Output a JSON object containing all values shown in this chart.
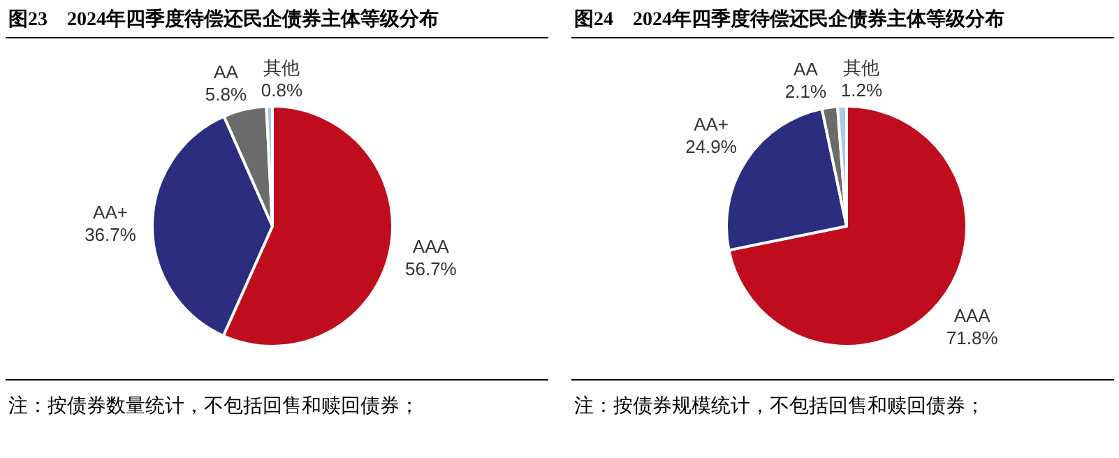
{
  "chart_data": [
    {
      "type": "pie",
      "title": "图23　2024年四季度待偿还民企债券主体等级分布",
      "categories": [
        "AAA",
        "AA+",
        "AA",
        "其他"
      ],
      "values": [
        56.7,
        36.7,
        5.8,
        0.8
      ],
      "value_labels": [
        "56.7%",
        "36.7%",
        "5.8%",
        "0.8%"
      ],
      "colors": [
        "#c00d1e",
        "#2b2d7f",
        "#6b6b6b",
        "#a9c9e9"
      ],
      "annotations": [
        "注：按债券数量统计，不包括回售和赎回债券；"
      ]
    },
    {
      "type": "pie",
      "title": "图24　2024年四季度待偿还民企债券主体等级分布",
      "categories": [
        "AAA",
        "AA+",
        "AA",
        "其他"
      ],
      "values": [
        71.8,
        24.9,
        2.1,
        1.2
      ],
      "value_labels": [
        "71.8%",
        "24.9%",
        "2.1%",
        "1.2%"
      ],
      "colors": [
        "#c00d1e",
        "#2b2d7f",
        "#6b6b6b",
        "#a9c9e9"
      ],
      "annotations": [
        "注：按债券规模统计，不包括回售和赎回债券；"
      ]
    }
  ]
}
